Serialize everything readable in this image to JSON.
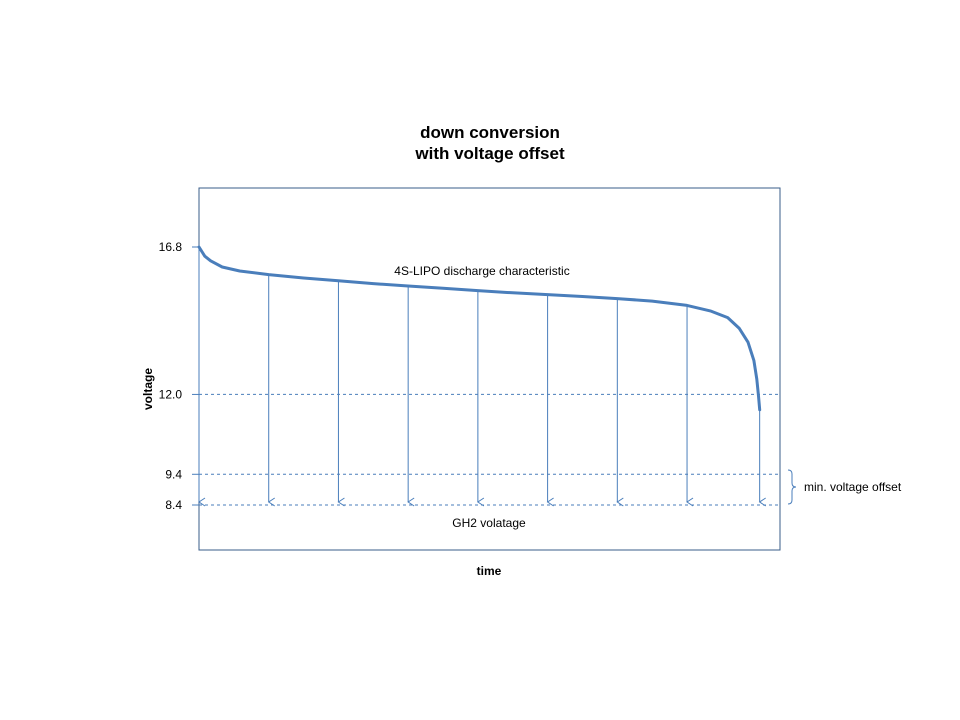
{
  "chart_data": {
    "type": "line",
    "title": [
      "down conversion",
      "with voltage offset"
    ],
    "xlabel": "time",
    "ylabel": "voltage",
    "ylim": [
      7.0,
      18.5
    ],
    "xlim": [
      0,
      1
    ],
    "y_ticks": [
      {
        "value": 16.8,
        "label": "16.8"
      },
      {
        "value": 12.0,
        "label": "12.0"
      },
      {
        "value": 9.4,
        "label": "9.4"
      },
      {
        "value": 8.4,
        "label": "8.4"
      }
    ],
    "reference_lines": [
      12.0,
      9.4,
      8.4
    ],
    "series": [
      {
        "name": "4S-LIPO discharge characteristic",
        "color": "#4a7ebb",
        "x": [
          0.0,
          0.01,
          0.02,
          0.04,
          0.07,
          0.12,
          0.18,
          0.24,
          0.3,
          0.36,
          0.42,
          0.48,
          0.54,
          0.6,
          0.66,
          0.72,
          0.78,
          0.84,
          0.88,
          0.91,
          0.93,
          0.945,
          0.955,
          0.96,
          0.963,
          0.965
        ],
        "y": [
          16.8,
          16.5,
          16.35,
          16.15,
          16.02,
          15.9,
          15.79,
          15.7,
          15.61,
          15.53,
          15.46,
          15.38,
          15.31,
          15.25,
          15.19,
          15.12,
          15.04,
          14.9,
          14.72,
          14.5,
          14.15,
          13.7,
          13.1,
          12.5,
          11.95,
          11.5
        ]
      }
    ],
    "conversion_arrows": {
      "x": [
        0.0,
        0.12,
        0.24,
        0.36,
        0.48,
        0.6,
        0.72,
        0.84,
        0.965
      ],
      "to": 8.4
    },
    "annotations": {
      "curve_label": "4S-LIPO discharge characteristic",
      "gh2_label": "GH2 volatage",
      "offset_label": "min. voltage offset"
    },
    "colors": {
      "line": "#4a7ebb",
      "arrow": "#4a7ebb",
      "frame": "#385d8a"
    },
    "grid": false,
    "legend": "none"
  }
}
